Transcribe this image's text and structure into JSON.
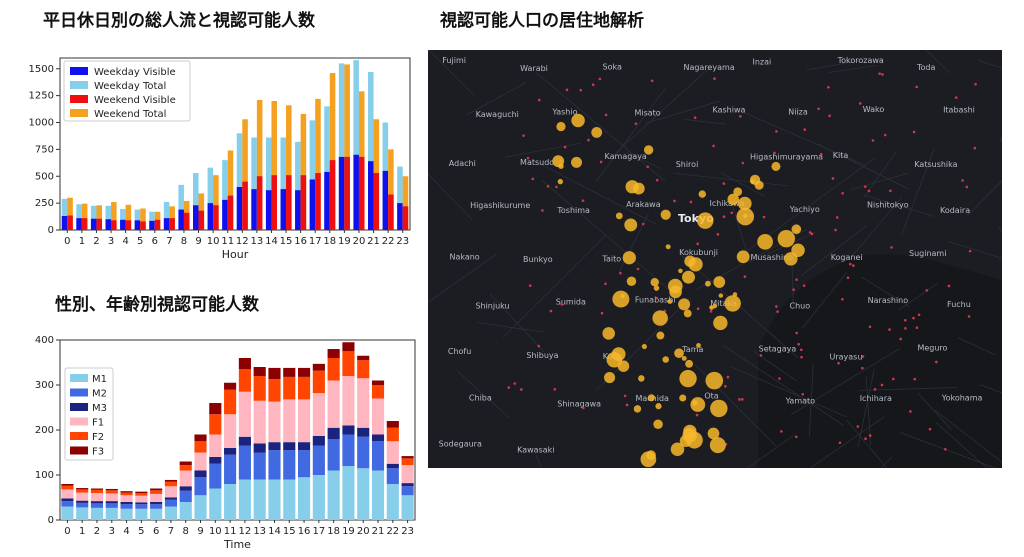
{
  "titles": {
    "chart1": "平日休日別の総人流と視認可能人数",
    "chart2": "性別、年齢別視認可能人数",
    "map": "視認可能人口の居住地解析"
  },
  "chart_data": [
    {
      "type": "bar",
      "title": "平日休日別の総人流と視認可能人数",
      "xlabel": "Hour",
      "ylabel": "",
      "ylim": [
        0,
        1600
      ],
      "yticks": [
        0,
        250,
        500,
        750,
        1000,
        1250,
        1500
      ],
      "legend_placement": "top-left",
      "categories": [
        "0",
        "1",
        "2",
        "3",
        "4",
        "5",
        "6",
        "7",
        "8",
        "9",
        "10",
        "11",
        "12",
        "13",
        "14",
        "15",
        "16",
        "17",
        "18",
        "19",
        "20",
        "21",
        "22",
        "23"
      ],
      "series": [
        {
          "name": "Weekday Visible",
          "color": "#1010ee",
          "values": [
            130,
            110,
            105,
            100,
            95,
            90,
            85,
            110,
            190,
            230,
            250,
            280,
            400,
            380,
            370,
            380,
            370,
            470,
            540,
            680,
            700,
            640,
            550,
            250
          ]
        },
        {
          "name": "Weekday Total",
          "color": "#87ceeb",
          "values": [
            290,
            240,
            225,
            225,
            195,
            190,
            170,
            260,
            420,
            530,
            580,
            650,
            900,
            860,
            860,
            860,
            820,
            1020,
            1150,
            1550,
            1580,
            1470,
            1000,
            590
          ]
        },
        {
          "name": "Weekend Visible",
          "color": "#ee1010",
          "values": [
            135,
            110,
            105,
            90,
            90,
            80,
            95,
            110,
            160,
            180,
            230,
            320,
            450,
            500,
            510,
            510,
            510,
            530,
            650,
            680,
            680,
            530,
            330,
            220
          ]
        },
        {
          "name": "Weekend Total",
          "color": "#f4a020",
          "values": [
            300,
            245,
            230,
            260,
            235,
            200,
            170,
            220,
            270,
            340,
            510,
            740,
            1030,
            1210,
            1200,
            1160,
            1080,
            1220,
            1460,
            1540,
            1290,
            1030,
            750,
            500
          ]
        }
      ]
    },
    {
      "type": "bar",
      "stacked": true,
      "title": "性別、年齢別視認可能人数",
      "xlabel": "Time",
      "ylabel": "",
      "ylim": [
        0,
        400
      ],
      "yticks": [
        0,
        100,
        200,
        300,
        400
      ],
      "legend_placement": "left",
      "categories": [
        "0",
        "1",
        "2",
        "3",
        "4",
        "5",
        "6",
        "7",
        "8",
        "9",
        "10",
        "11",
        "12",
        "13",
        "14",
        "15",
        "16",
        "17",
        "18",
        "19",
        "20",
        "21",
        "22",
        "23"
      ],
      "series": [
        {
          "name": "M1",
          "color": "#87ceeb",
          "values": [
            30,
            28,
            27,
            27,
            25,
            25,
            25,
            30,
            40,
            55,
            70,
            80,
            90,
            90,
            90,
            90,
            95,
            100,
            110,
            120,
            115,
            110,
            80,
            55
          ]
        },
        {
          "name": "M2",
          "color": "#4169e1",
          "values": [
            12,
            10,
            10,
            10,
            10,
            10,
            10,
            15,
            25,
            40,
            55,
            65,
            75,
            60,
            65,
            65,
            60,
            65,
            70,
            70,
            70,
            65,
            35,
            20
          ]
        },
        {
          "name": "M3",
          "color": "#1a237e",
          "values": [
            6,
            5,
            5,
            5,
            5,
            4,
            5,
            5,
            10,
            15,
            15,
            15,
            20,
            20,
            18,
            18,
            18,
            22,
            25,
            20,
            20,
            15,
            10,
            7
          ]
        },
        {
          "name": "F1",
          "color": "#ffb6c1",
          "values": [
            20,
            18,
            18,
            17,
            15,
            15,
            18,
            25,
            35,
            40,
            50,
            75,
            100,
            95,
            90,
            95,
            95,
            95,
            105,
            110,
            110,
            80,
            50,
            40
          ]
        },
        {
          "name": "F2",
          "color": "#ff4500",
          "values": [
            8,
            7,
            7,
            7,
            6,
            6,
            8,
            10,
            12,
            25,
            45,
            55,
            50,
            55,
            50,
            50,
            50,
            50,
            50,
            55,
            40,
            30,
            30,
            15
          ]
        },
        {
          "name": "F3",
          "color": "#8b0000",
          "values": [
            4,
            3,
            3,
            3,
            3,
            3,
            4,
            4,
            8,
            15,
            25,
            15,
            25,
            20,
            25,
            20,
            20,
            15,
            20,
            20,
            10,
            10,
            15,
            5
          ]
        }
      ]
    }
  ],
  "map": {
    "background": "#1b1d22",
    "bubble_color": "#f7b72a",
    "dot_color": "#d1384a",
    "main_label": "Tokyo",
    "places": [
      "Fujimi",
      "Warabi",
      "Soka",
      "Nagareyama",
      "Inzai",
      "Tokorozawa",
      "Toda",
      "Kawaguchi",
      "Yashio",
      "Misato",
      "Kashiwa",
      "Niiza",
      "Wako",
      "Itabashi",
      "Adachi",
      "Matsudo",
      "Kamagaya",
      "Shiroi",
      "Higashimurayama",
      "Kita",
      "Katsushika",
      "Higashikurume",
      "Toshima",
      "Arakawa",
      "Ichikawa",
      "Yachiyo",
      "Nishitokyo",
      "Kodaira",
      "Nakano",
      "Bunkyo",
      "Taito",
      "Kokubunji",
      "Musashino",
      "Koganei",
      "Suginami",
      "Shinjuku",
      "Sumida",
      "Funabashi",
      "Mitaka",
      "Chuo",
      "Narashino",
      "Fuchu",
      "Chofu",
      "Shibuya",
      "Koto",
      "Tama",
      "Setagaya",
      "Urayasu",
      "Meguro",
      "Chiba",
      "Shinagawa",
      "Machida",
      "Ota",
      "Yamato",
      "Ichihara",
      "Yokohama",
      "Sodegaura",
      "Kawasaki"
    ]
  }
}
